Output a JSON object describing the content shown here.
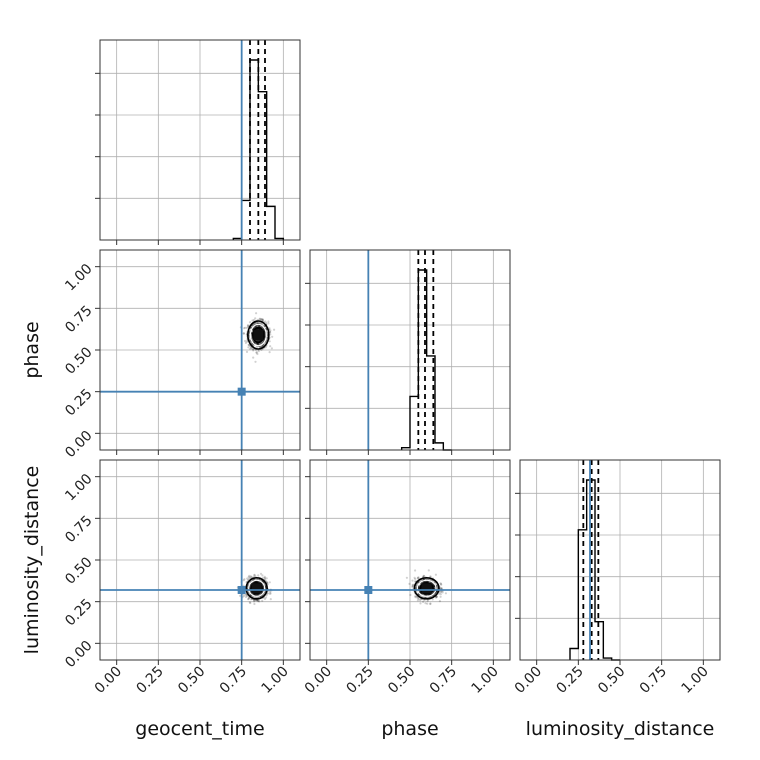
{
  "chart_data": {
    "type": "corner",
    "parameters": [
      "geocent_time",
      "phase",
      "luminosity_distance"
    ],
    "range": [
      -0.1,
      1.1
    ],
    "tick_values": [
      0.0,
      0.25,
      0.5,
      0.75,
      1.0
    ],
    "tick_labels": [
      "0.00",
      "0.25",
      "0.50",
      "0.75",
      "1.00"
    ],
    "truths": {
      "geocent_time": 0.75,
      "phase": 0.25,
      "luminosity_distance": 0.32
    },
    "colors": {
      "truth": "#4682b4",
      "hist": "#000000",
      "grid": "#b0b0b0"
    },
    "grid": true,
    "histograms": {
      "geocent_time": {
        "bins": [
          0.7,
          0.75,
          0.8,
          0.85,
          0.9,
          0.95,
          1.0
        ],
        "counts": [
          0.04,
          1.0,
          4.55,
          3.75,
          0.85,
          0.04
        ],
        "quantiles": [
          0.8,
          0.85,
          0.89
        ]
      },
      "phase": {
        "bins": [
          0.45,
          0.5,
          0.55,
          0.6,
          0.65,
          0.7,
          0.75
        ],
        "counts": [
          0.07,
          1.65,
          5.55,
          2.9,
          0.22,
          0.0
        ],
        "quantiles": [
          0.55,
          0.59,
          0.64
        ]
      },
      "luminosity_distance": {
        "bins": [
          0.2,
          0.25,
          0.3,
          0.35,
          0.4,
          0.45,
          0.5
        ],
        "counts": [
          0.3,
          3.4,
          4.7,
          1.0,
          0.05,
          0.0
        ],
        "quantiles": [
          0.28,
          0.33,
          0.37
        ]
      }
    },
    "scatter": [
      {
        "x": "geocent_time",
        "y": "phase",
        "center": [
          0.85,
          0.59
        ],
        "spread": [
          0.03,
          0.04
        ]
      },
      {
        "x": "geocent_time",
        "y": "luminosity_distance",
        "center": [
          0.84,
          0.33
        ],
        "spread": [
          0.03,
          0.03
        ]
      },
      {
        "x": "phase",
        "y": "luminosity_distance",
        "center": [
          0.6,
          0.33
        ],
        "spread": [
          0.035,
          0.03
        ]
      }
    ]
  }
}
